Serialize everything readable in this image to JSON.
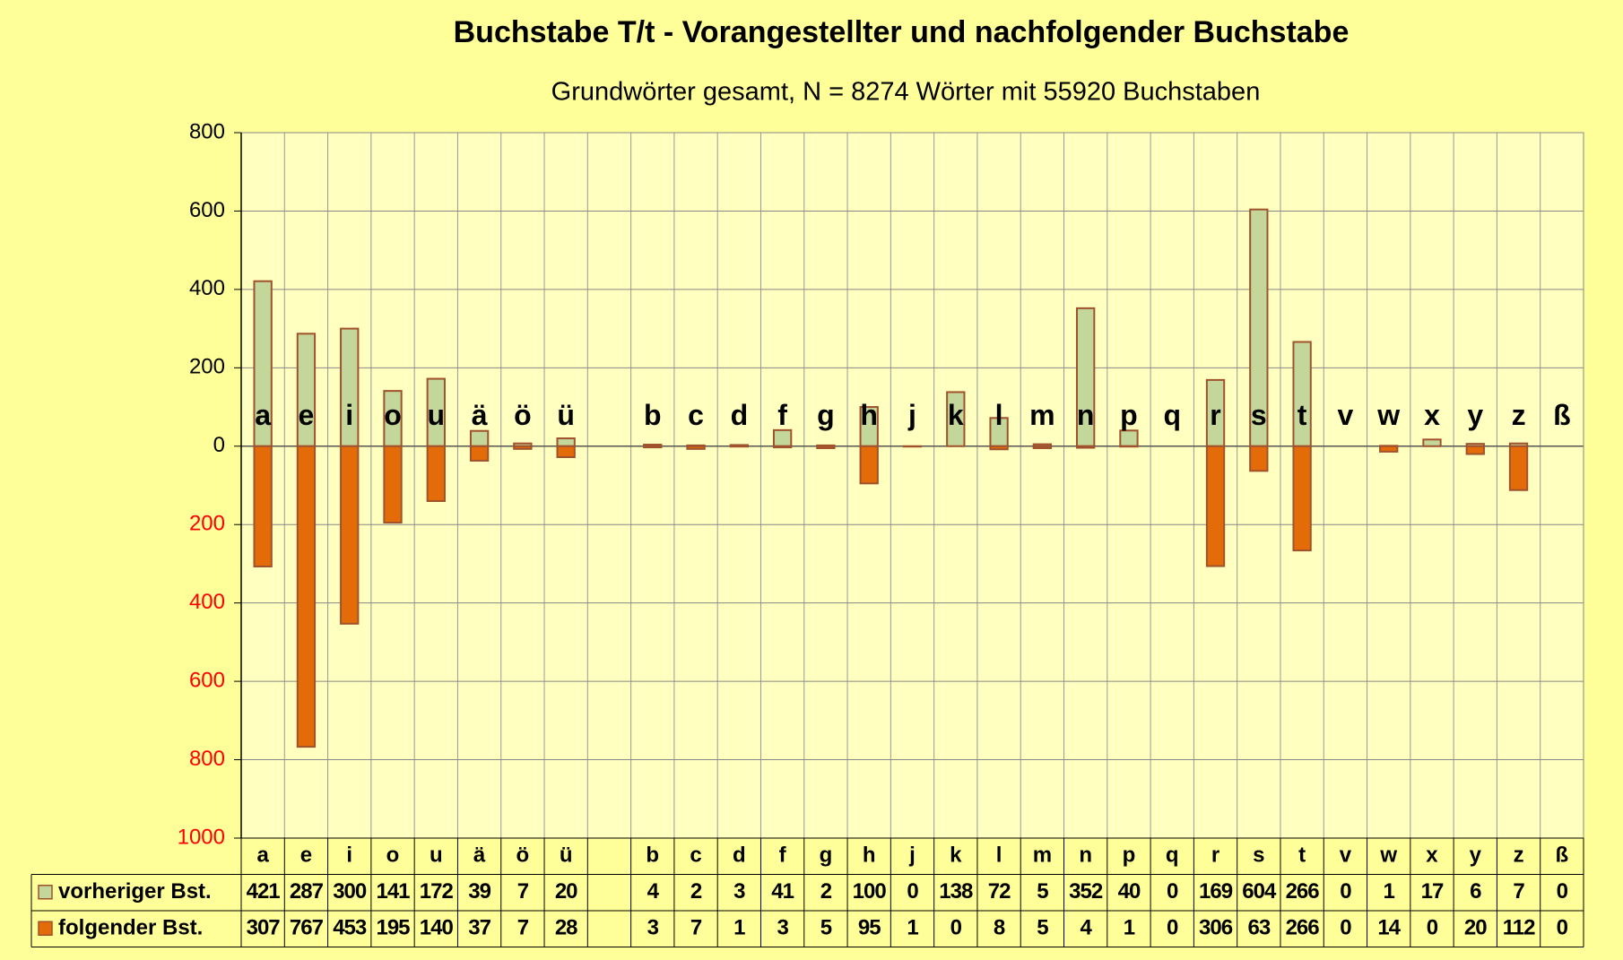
{
  "chart_data": {
    "type": "bar",
    "title": "Buchstabe T/t - Vorangestellter und nachfolgender Buchstabe",
    "subtitle": "Grundwörter gesamt,  N = 8274 Wörter mit 55920 Buchstaben",
    "categories": [
      "a",
      "e",
      "i",
      "o",
      "u",
      "ä",
      "ö",
      "ü",
      null,
      "b",
      "c",
      "d",
      "f",
      "g",
      "h",
      "j",
      "k",
      "l",
      "m",
      "n",
      "p",
      "q",
      "r",
      "s",
      "t",
      "v",
      "w",
      "x",
      "y",
      "z",
      "ß"
    ],
    "series": [
      {
        "name": "vorheriger Bst.",
        "color": "#c4d79b",
        "direction": "up",
        "values": [
          421,
          287,
          300,
          141,
          172,
          39,
          7,
          20,
          null,
          4,
          2,
          3,
          41,
          2,
          100,
          0,
          138,
          72,
          5,
          352,
          40,
          0,
          169,
          604,
          266,
          0,
          1,
          17,
          6,
          7,
          0
        ]
      },
      {
        "name": "folgender Bst.",
        "color": "#e36c09",
        "direction": "down",
        "values": [
          307,
          767,
          453,
          195,
          140,
          37,
          7,
          28,
          null,
          3,
          7,
          1,
          3,
          5,
          95,
          1,
          0,
          8,
          5,
          4,
          1,
          0,
          306,
          63,
          266,
          0,
          14,
          0,
          20,
          112,
          0
        ]
      }
    ],
    "ylim": [
      -1000,
      800
    ],
    "yticks": [
      800,
      600,
      400,
      200,
      0,
      {
        "value": -200,
        "label": "200"
      },
      {
        "value": -400,
        "label": "400"
      },
      {
        "value": -600,
        "label": "600"
      },
      {
        "value": -800,
        "label": "800"
      },
      {
        "value": -1000,
        "label": "1000"
      }
    ],
    "negative_tick_color": "#ff0000",
    "grid": true
  }
}
